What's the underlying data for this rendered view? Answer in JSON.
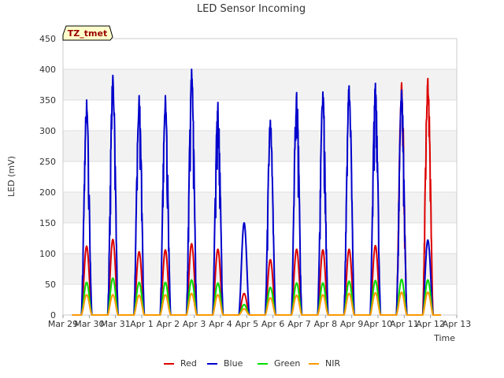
{
  "chart_data": {
    "type": "line",
    "title": "LED Sensor Incoming",
    "xlabel": "Time",
    "ylabel": "LED (mV)",
    "ylim": [
      0,
      450
    ],
    "yticks": [
      0,
      50,
      100,
      150,
      200,
      250,
      300,
      350,
      400,
      450
    ],
    "xlim": [
      0,
      15
    ],
    "x_tick_labels": [
      "Mar 29",
      "Mar 30",
      "Mar 31",
      "Apr 1",
      "Apr 2",
      "Apr 3",
      "Apr 4",
      "Apr 5",
      "Apr 6",
      "Apr 7",
      "Apr 8",
      "Apr 9",
      "Apr 10",
      "Apr 11",
      "Apr 12",
      "Apr 13"
    ],
    "x_units": "days since Mar 29",
    "grid_bands": true,
    "legend_position": "bottom-center",
    "annotation": "TZ_tmet",
    "series": [
      {
        "name": "Red",
        "color": "#dd0000",
        "peaks": [
          {
            "x": 0.9,
            "y": 112
          },
          {
            "x": 1.9,
            "y": 123
          },
          {
            "x": 2.9,
            "y": 103
          },
          {
            "x": 3.9,
            "y": 106
          },
          {
            "x": 4.9,
            "y": 116
          },
          {
            "x": 5.9,
            "y": 107
          },
          {
            "x": 6.9,
            "y": 35
          },
          {
            "x": 7.9,
            "y": 90
          },
          {
            "x": 8.9,
            "y": 107
          },
          {
            "x": 9.9,
            "y": 106
          },
          {
            "x": 10.9,
            "y": 107
          },
          {
            "x": 11.9,
            "y": 113
          },
          {
            "x": 12.9,
            "y": 378
          },
          {
            "x": 13.9,
            "y": 385
          }
        ]
      },
      {
        "name": "Blue",
        "color": "#0000cc",
        "peaks": [
          {
            "x": 0.9,
            "y": 350
          },
          {
            "x": 1.9,
            "y": 390
          },
          {
            "x": 2.9,
            "y": 357
          },
          {
            "x": 3.9,
            "y": 357
          },
          {
            "x": 4.9,
            "y": 400
          },
          {
            "x": 5.9,
            "y": 346
          },
          {
            "x": 6.9,
            "y": 150
          },
          {
            "x": 7.9,
            "y": 317
          },
          {
            "x": 8.9,
            "y": 362
          },
          {
            "x": 9.9,
            "y": 363
          },
          {
            "x": 10.9,
            "y": 373
          },
          {
            "x": 11.9,
            "y": 377
          },
          {
            "x": 12.9,
            "y": 366
          },
          {
            "x": 13.9,
            "y": 122
          }
        ]
      },
      {
        "name": "Green",
        "color": "#00dd00",
        "peaks": [
          {
            "x": 0.9,
            "y": 53
          },
          {
            "x": 1.9,
            "y": 60
          },
          {
            "x": 2.9,
            "y": 53
          },
          {
            "x": 3.9,
            "y": 53
          },
          {
            "x": 4.9,
            "y": 57
          },
          {
            "x": 5.9,
            "y": 52
          },
          {
            "x": 6.9,
            "y": 17
          },
          {
            "x": 7.9,
            "y": 45
          },
          {
            "x": 8.9,
            "y": 52
          },
          {
            "x": 9.9,
            "y": 52
          },
          {
            "x": 10.9,
            "y": 55
          },
          {
            "x": 11.9,
            "y": 56
          },
          {
            "x": 12.9,
            "y": 58
          },
          {
            "x": 13.9,
            "y": 57
          }
        ]
      },
      {
        "name": "NIR",
        "color": "#ff9900",
        "peaks": [
          {
            "x": 0.9,
            "y": 33
          },
          {
            "x": 1.9,
            "y": 33
          },
          {
            "x": 2.9,
            "y": 32
          },
          {
            "x": 3.9,
            "y": 33
          },
          {
            "x": 4.9,
            "y": 35
          },
          {
            "x": 5.9,
            "y": 33
          },
          {
            "x": 6.9,
            "y": 10
          },
          {
            "x": 7.9,
            "y": 28
          },
          {
            "x": 8.9,
            "y": 32
          },
          {
            "x": 9.9,
            "y": 33
          },
          {
            "x": 10.9,
            "y": 35
          },
          {
            "x": 11.9,
            "y": 36
          },
          {
            "x": 12.9,
            "y": 37
          },
          {
            "x": 13.9,
            "y": 37
          }
        ]
      }
    ]
  }
}
